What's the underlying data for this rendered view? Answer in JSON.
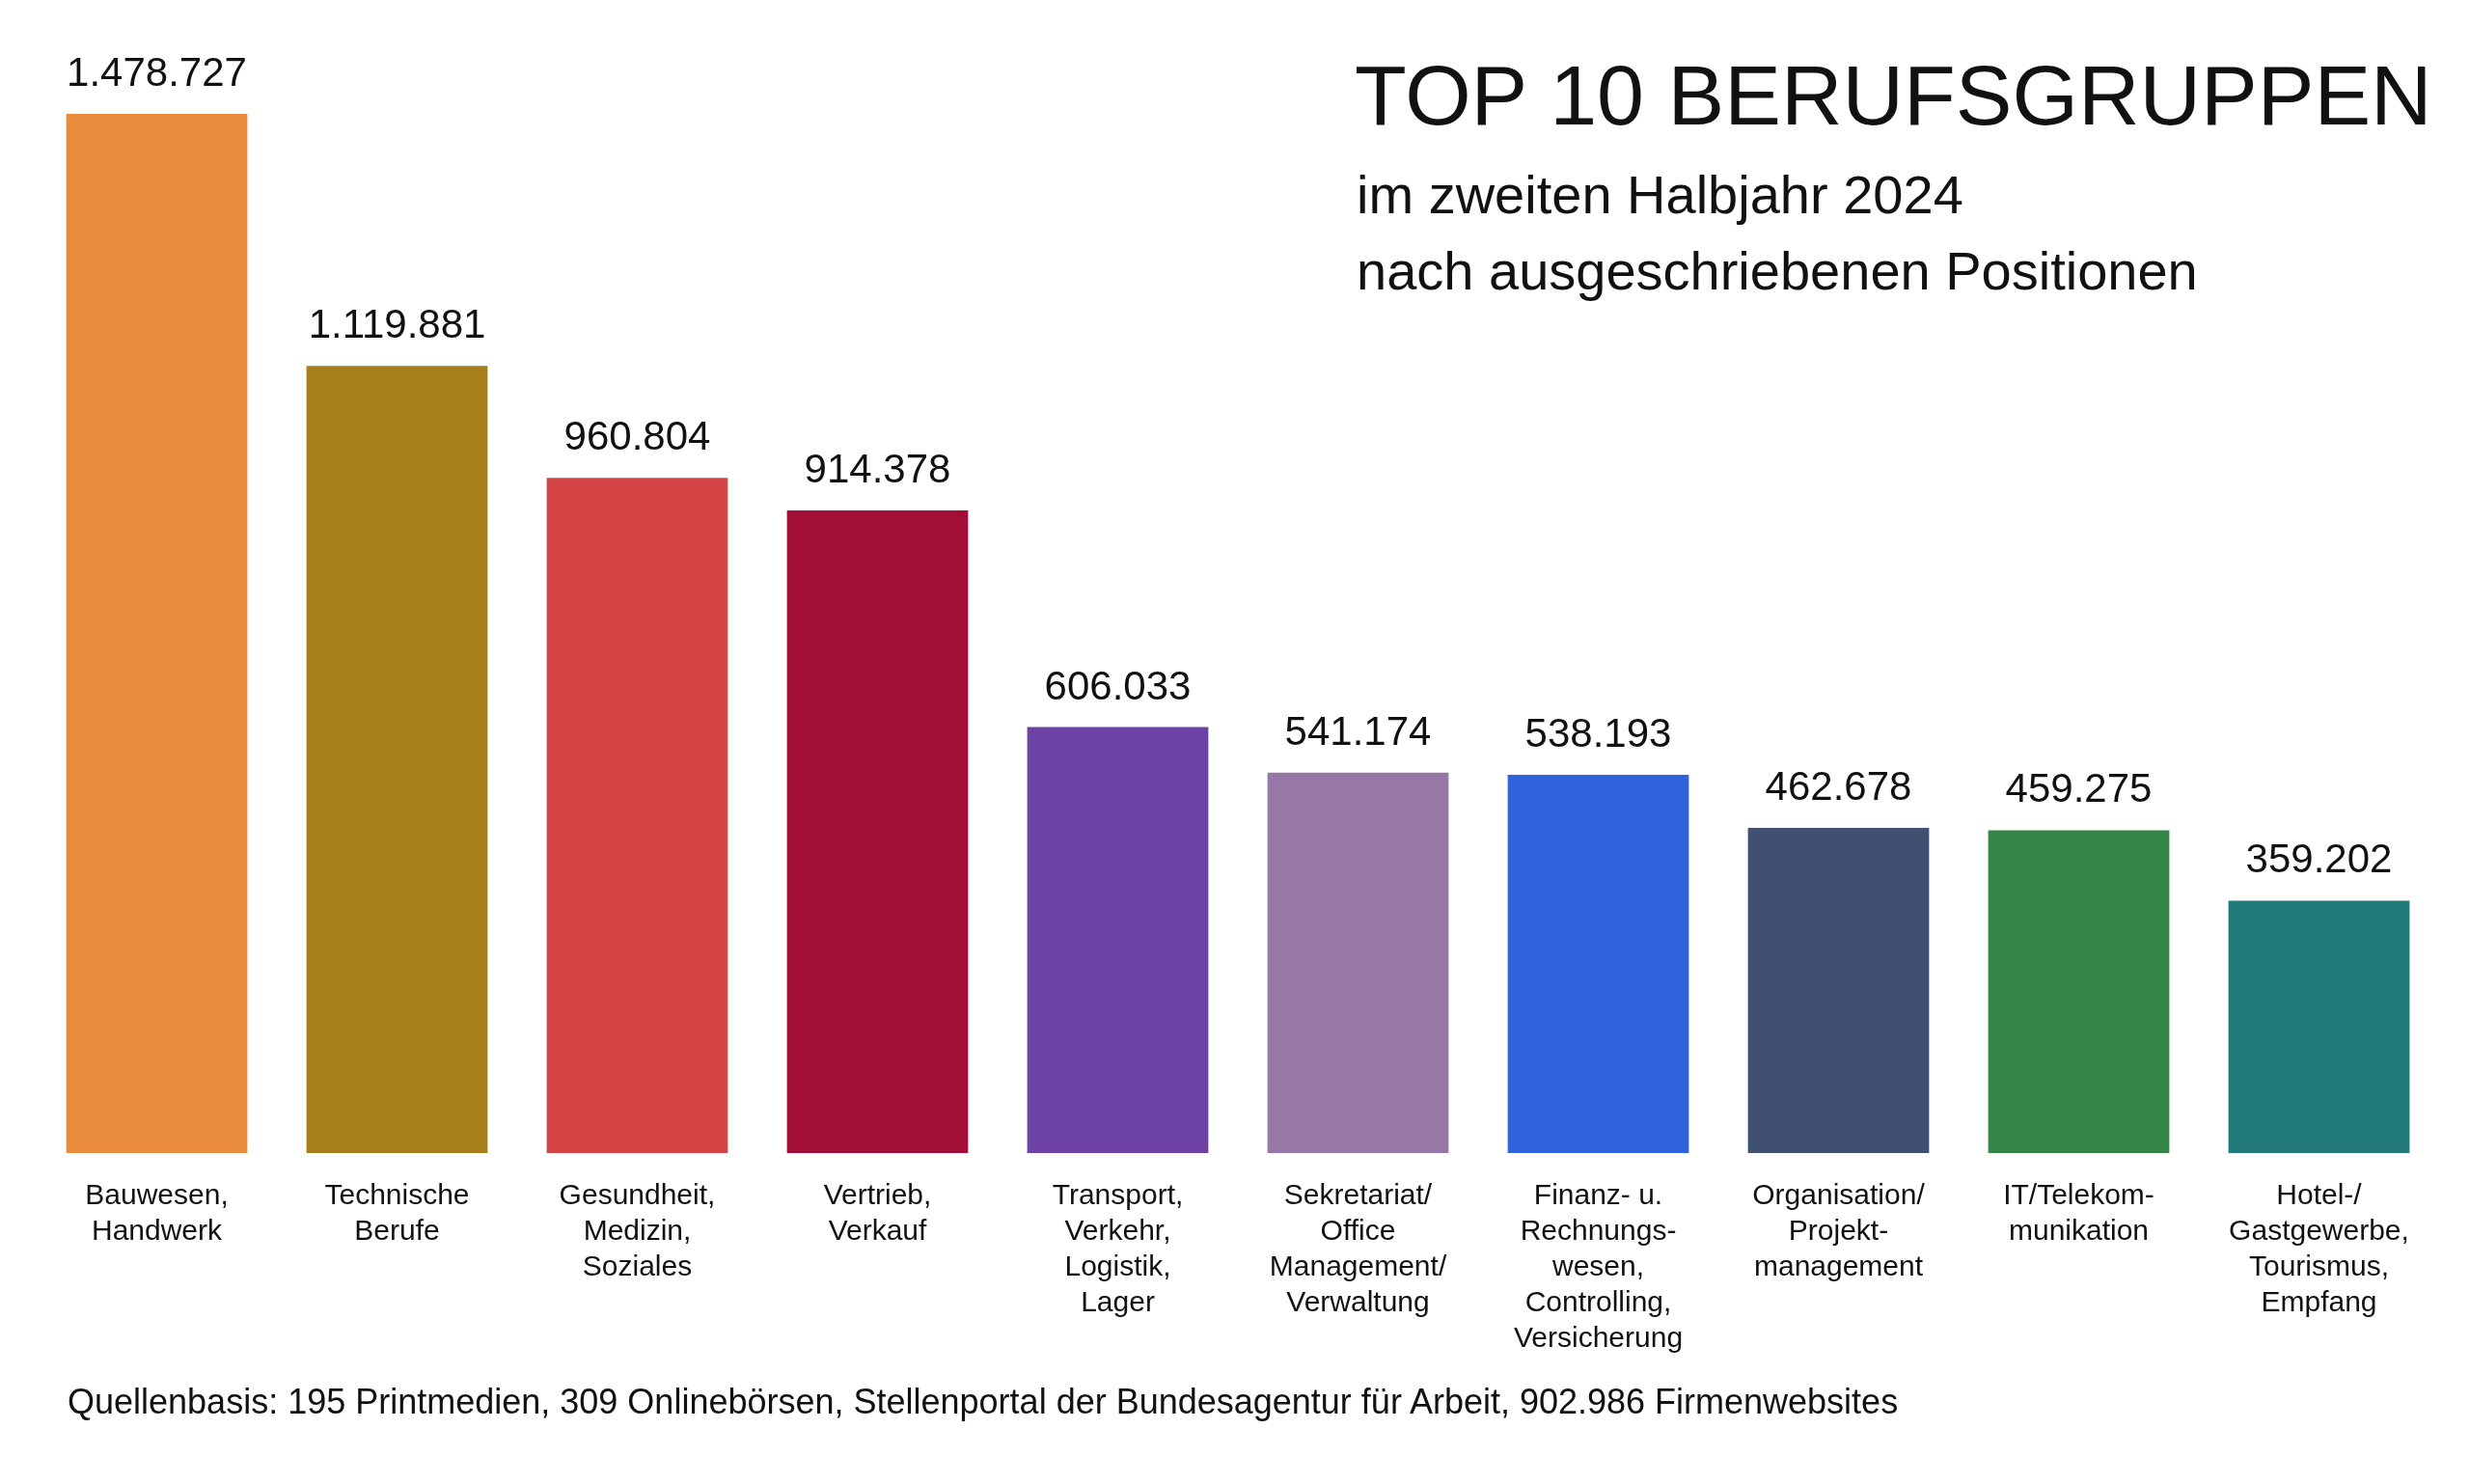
{
  "chart_data": {
    "type": "bar",
    "title": "TOP 10 BERUFSGRUPPEN",
    "subtitle": "im zweiten Halbjahr 2024\nnach ausgeschriebenen Positionen",
    "categories": [
      "Bauwesen,\nHandwerk",
      "Technische\nBerufe",
      "Gesundheit,\nMedizin,\nSoziales",
      "Vertrieb,\nVerkauf",
      "Transport,\nVerkehr,\nLogistik,\nLager",
      "Sekretariat/\nOffice\nManagement/\nVerwaltung",
      "Finanz- u.\nRechnungs-\nwesen,\nControlling,\nVersicherung",
      "Organisation/\nProjekt-\nmanagement",
      "IT/Telekom-\nmunikation",
      "Hotel-/\nGastgewerbe,\nTourismus,\nEmpfang"
    ],
    "values": [
      1478727,
      1119881,
      960804,
      914378,
      606033,
      541174,
      538193,
      462678,
      459275,
      359202
    ],
    "value_labels": [
      "1.478.727",
      "1.119.881",
      "960.804",
      "914.378",
      "606.033",
      "541.174",
      "538.193",
      "462.678",
      "459.275",
      "359.202"
    ],
    "colors": [
      "#e88b3b",
      "#a67f1a",
      "#d64546",
      "#a30e38",
      "#6c42a5",
      "#9677a6",
      "#3062dc",
      "#3f5071",
      "#348547",
      "#237a7a"
    ],
    "annotations": [
      "Quellenbasis: 195 Printmedien, 309 Onlinebörsen, Stellenportal der Bundesagentur für Arbeit, 902.986 Firmenwebsites"
    ],
    "legend": false,
    "grid": false
  }
}
